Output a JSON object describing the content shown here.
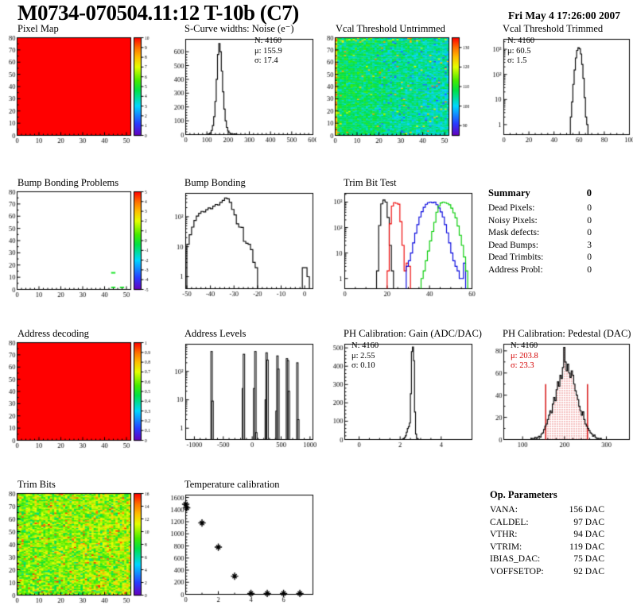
{
  "header": {
    "title": "M0734-070504.11:12 T-10b (C7)",
    "date": "Fri May  4 17:26:00 2007"
  },
  "summary": {
    "heading": "Summary",
    "heading_value": "0",
    "rows": [
      [
        "Dead Pixels:",
        "0"
      ],
      [
        "Noisy Pixels:",
        "0"
      ],
      [
        "Mask defects:",
        "0"
      ],
      [
        "Dead Bumps:",
        "3"
      ],
      [
        "Dead Trimbits:",
        "0"
      ],
      [
        "Address Probl:",
        "0"
      ]
    ]
  },
  "op_parameters": {
    "heading": "Op. Parameters",
    "rows": [
      [
        "VANA:",
        "156 DAC"
      ],
      [
        "CALDEL:",
        "97 DAC"
      ],
      [
        "VTHR:",
        "94 DAC"
      ],
      [
        "VTRIM:",
        "119 DAC"
      ],
      [
        "IBIAS_DAC:",
        "75 DAC"
      ],
      [
        "VOFFSETOP:",
        "92 DAC"
      ]
    ]
  },
  "colors": {
    "red": "#ee0000",
    "green": "#00cc00",
    "blue": "#0000dd",
    "black": "#000000",
    "overlay_red": "#d40000"
  },
  "chart_data": [
    {
      "id": "pixel-map",
      "type": "heatmap",
      "title": "Pixel Map",
      "row": 0,
      "col": 0,
      "x_range": [
        0,
        52
      ],
      "x_ticks": [
        0,
        10,
        20,
        30,
        40,
        50
      ],
      "x_minor": 5,
      "y_range": [
        0,
        80
      ],
      "y_ticks": [
        0,
        10,
        20,
        30,
        40,
        50,
        60,
        70,
        80
      ],
      "y_minor": 2,
      "z_range": [
        0,
        10
      ],
      "z_ticks": [
        "0",
        "1",
        "2",
        "3",
        "4",
        "5",
        "6",
        "7",
        "8",
        "9",
        "10"
      ],
      "heat": {
        "mode": "uniform",
        "value": 10
      }
    },
    {
      "id": "scurve-noise",
      "type": "hist",
      "title": "S-Curve widths: Noise (e⁻)",
      "row": 0,
      "col": 1,
      "x_range": [
        0,
        600
      ],
      "x_ticks": [
        0,
        100,
        200,
        300,
        400,
        500,
        600
      ],
      "x_minor": 5,
      "y_range": [
        0,
        690
      ],
      "y_ticks": [
        0,
        100,
        200,
        300,
        400,
        500,
        600
      ],
      "y_minor": 5,
      "stats": {
        "x": 114,
        "lines": [
          {
            "t": "N: 4160",
            "c": "#000"
          },
          {
            "t": "μ: 155.9",
            "c": "#000"
          },
          {
            "t": "σ: 17.4",
            "c": "#000"
          }
        ]
      },
      "hist": {
        "start": 96,
        "binWidth": 6,
        "color": "#000000",
        "counts": [
          1,
          2,
          5,
          12,
          30,
          65,
          130,
          240,
          400,
          580,
          660,
          600,
          460,
          310,
          185,
          100,
          52,
          26,
          13,
          7,
          3,
          2,
          5,
          2,
          1
        ]
      }
    },
    {
      "id": "vcal-untrimmed",
      "type": "heatmap",
      "title": "Vcal Threshold Untrimmed",
      "row": 0,
      "col": 2,
      "x_range": [
        0,
        52
      ],
      "x_ticks": [
        0,
        10,
        20,
        30,
        40,
        50
      ],
      "x_minor": 5,
      "y_range": [
        0,
        80
      ],
      "y_ticks": [
        0,
        10,
        20,
        30,
        40,
        50,
        60,
        70,
        80
      ],
      "y_minor": 2,
      "z_range": [
        85,
        135
      ],
      "z_ticks": [
        "90",
        "100",
        "110",
        "120",
        "130"
      ],
      "heat": {
        "mode": "noise",
        "seed": 11,
        "base": 107.5,
        "spread": 7,
        "grad": -4,
        "left_col": [
          112,
          133
        ],
        "hot_p": 0.018,
        "hot": [
          118,
          130
        ],
        "cold_p": 0.055,
        "cold": [
          92,
          99
        ],
        "cold_xmin": 18,
        "top_hot": [
          113,
          126
        ]
      }
    },
    {
      "id": "vcal-trimmed",
      "type": "hist",
      "title": "Vcal Threshold Trimmed",
      "row": 0,
      "col": 3,
      "x_range": [
        0,
        100
      ],
      "x_ticks": [
        0,
        20,
        40,
        60,
        80,
        100
      ],
      "x_minor": 4,
      "y_log": true,
      "y_min": 0.4,
      "y_max": 2500,
      "stats": {
        "x": 32,
        "lines": [
          {
            "t": "N: 4160",
            "c": "#000"
          },
          {
            "t": "μ: 60.5",
            "c": "#000"
          },
          {
            "t": "σ:  1.5",
            "c": "#000"
          }
        ]
      },
      "hist": {
        "start": 53,
        "binWidth": 1,
        "color": "#000000",
        "counts": [
          2,
          8,
          40,
          150,
          450,
          900,
          1150,
          1050,
          650,
          250,
          70,
          12,
          2,
          1
        ]
      }
    },
    {
      "id": "bump-problems",
      "type": "heatmap",
      "title": "Bump Bonding Problems",
      "row": 1,
      "col": 0,
      "x_range": [
        0,
        52
      ],
      "x_ticks": [
        0,
        10,
        20,
        30,
        40,
        50
      ],
      "x_minor": 5,
      "y_range": [
        0,
        80
      ],
      "y_ticks": [
        0,
        10,
        20,
        30,
        40,
        50,
        60,
        70,
        80
      ],
      "y_minor": 2,
      "z_range": [
        -5,
        5
      ],
      "z_ticks": [
        "-5",
        "-4",
        "-3",
        "-2",
        "-1",
        "0",
        "1",
        "2",
        "3",
        "4",
        "5"
      ],
      "heat": {
        "mode": "cells",
        "cell_value": 0,
        "cells": [
          [
            43,
            13
          ],
          [
            43,
            1
          ],
          [
            47,
            1
          ]
        ]
      }
    },
    {
      "id": "bump-bonding",
      "type": "hist",
      "title": "Bump Bonding",
      "row": 1,
      "col": 1,
      "x_range": [
        -50.5,
        3.5
      ],
      "x_ticks": [
        -50,
        -40,
        -30,
        -20,
        -10,
        0
      ],
      "x_minor": 5,
      "y_log": true,
      "y_min": 0.4,
      "y_max": 600,
      "hist": {
        "start": -50,
        "binWidth": 1,
        "color": "#000000",
        "counts": [
          12,
          25,
          45,
          75,
          105,
          130,
          150,
          145,
          170,
          195,
          185,
          225,
          255,
          245,
          300,
          350,
          420,
          395,
          300,
          175,
          115,
          58,
          45,
          44,
          15,
          13,
          12,
          8,
          3,
          2,
          0,
          0,
          0,
          0,
          0,
          0,
          0,
          0,
          0,
          0,
          0,
          0,
          0,
          0,
          0,
          0,
          0,
          0,
          0,
          2,
          2,
          1
        ]
      }
    },
    {
      "id": "trim-bit-test",
      "type": "multihist",
      "title": "Trim Bit Test",
      "row": 1,
      "col": 2,
      "x_range": [
        0,
        60
      ],
      "x_ticks": [
        0,
        20,
        40,
        60
      ],
      "x_minor": 4,
      "y_log": true,
      "y_min": 0.4,
      "y_max": 2200,
      "series": [
        {
          "name": "trim-bits-14",
          "color": "#000000",
          "start": 15,
          "binWidth": 1,
          "counts": [
            2,
            120,
            850,
            1200,
            1000,
            250,
            20,
            2
          ]
        },
        {
          "name": "trim-bits-13",
          "color": "#ee0000",
          "start": 20,
          "binWidth": 1,
          "counts": [
            2,
            140,
            700,
            950,
            900,
            830,
            170,
            20,
            2,
            4,
            3
          ]
        },
        {
          "name": "trim-bits-11",
          "color": "#0000dd",
          "start": 29,
          "binWidth": 1,
          "counts": [
            3,
            5,
            10,
            25,
            60,
            130,
            260,
            420,
            620,
            820,
            950,
            1000,
            940,
            990,
            790,
            590,
            410,
            260,
            130,
            62,
            25,
            10,
            5,
            3,
            2,
            1,
            1,
            4
          ]
        },
        {
          "name": "trim-bits-7",
          "color": "#00cc00",
          "start": 36,
          "binWidth": 1,
          "counts": [
            1,
            2,
            5,
            12,
            30,
            70,
            160,
            400,
            700,
            920,
            1000,
            950,
            880,
            780,
            580,
            380,
            240,
            115,
            50,
            20,
            7,
            2
          ]
        }
      ]
    },
    {
      "id": "address-decoding",
      "type": "heatmap",
      "title": "Address decoding",
      "row": 2,
      "col": 0,
      "x_range": [
        0,
        52
      ],
      "x_ticks": [
        0,
        10,
        20,
        30,
        40,
        50
      ],
      "x_minor": 5,
      "y_range": [
        0,
        80
      ],
      "y_ticks": [
        0,
        10,
        20,
        30,
        40,
        50,
        60,
        70,
        80
      ],
      "y_minor": 2,
      "z_range": [
        0,
        1
      ],
      "z_ticks": [
        "0",
        "0.1",
        "0.2",
        "0.3",
        "0.4",
        "0.5",
        "0.6",
        "0.7",
        "0.8",
        "0.9",
        "1"
      ],
      "heat": {
        "mode": "uniform",
        "value": 1
      }
    },
    {
      "id": "address-levels",
      "type": "bars",
      "title": "Address Levels",
      "row": 2,
      "col": 1,
      "x_range": [
        -1150,
        1050
      ],
      "x_ticks": [
        -1000,
        -500,
        0,
        500,
        1000
      ],
      "x_minor": 5,
      "y_log": true,
      "y_min": 0.4,
      "y_max": 900,
      "barWidth": 26,
      "bars": [
        [
          -715,
          500
        ],
        [
          -698,
          9
        ],
        [
          -172,
          25
        ],
        [
          -156,
          400
        ],
        [
          22,
          25
        ],
        [
          42,
          500
        ],
        [
          58,
          0.7
        ],
        [
          222,
          10
        ],
        [
          236,
          450
        ],
        [
          252,
          250
        ],
        [
          408,
          4
        ],
        [
          424,
          350
        ],
        [
          440,
          120
        ],
        [
          588,
          280
        ],
        [
          606,
          240
        ],
        [
          622,
          20
        ],
        [
          768,
          200
        ],
        [
          784,
          2
        ]
      ]
    },
    {
      "id": "ph-gain",
      "type": "hist",
      "title": "PH Calibration: Gain (ADC/DAC)",
      "row": 2,
      "col": 2,
      "x_range": [
        -0.7,
        5.5
      ],
      "x_ticks": [
        0,
        2,
        4
      ],
      "x_minor": 4,
      "y_range": [
        0,
        520
      ],
      "y_ticks": [
        0,
        100,
        200,
        300,
        400,
        500
      ],
      "y_minor": 5,
      "stats": {
        "x": 36,
        "lines": [
          {
            "t": "N: 4160",
            "c": "#000"
          },
          {
            "t": "μ: 2.55",
            "c": "#000"
          },
          {
            "t": "σ: 0.10",
            "c": "#000"
          }
        ]
      },
      "hist": {
        "start": 2.1,
        "binWidth": 0.05,
        "color": "#000000",
        "counts": [
          2,
          5,
          10,
          20,
          40,
          60,
          70,
          90,
          250,
          480,
          505,
          430,
          150,
          30,
          6,
          2
        ]
      }
    },
    {
      "id": "ph-pedestal",
      "type": "hist",
      "title": "PH Calibration: Pedestal (DAC)",
      "row": 2,
      "col": 3,
      "x_range": [
        55,
        355
      ],
      "x_ticks": [
        100,
        200,
        300
      ],
      "x_minor": 5,
      "y_range": [
        0,
        86
      ],
      "y_ticks": [
        0,
        20,
        40,
        60,
        80
      ],
      "y_minor": 2,
      "stats": {
        "x": 36,
        "lines": [
          {
            "t": "N: 4160",
            "c": "#000"
          },
          {
            "t": "μ: 203.8",
            "c": "#d40000"
          },
          {
            "t": "σ: 23.3",
            "c": "#d40000"
          }
        ]
      },
      "overlay": {
        "color": "#d40000",
        "fill_range": [
          155,
          255
        ],
        "lines": [
          {
            "x": 155,
            "y2": 50
          },
          {
            "x": 255,
            "y2": 50
          }
        ]
      },
      "hist": {
        "start": 120,
        "binWidth": 3,
        "color": "#000000",
        "counts": [
          1,
          0,
          1,
          2,
          1,
          2,
          3,
          2,
          5,
          6,
          9,
          12,
          14,
          18,
          22,
          26,
          24,
          32,
          38,
          35,
          45,
          52,
          48,
          58,
          55,
          65,
          83,
          70,
          62,
          68,
          60,
          56,
          62,
          58,
          50,
          44,
          40,
          36,
          30,
          26,
          22,
          25,
          18,
          14,
          12,
          10,
          8,
          6,
          5,
          3,
          4,
          2,
          1,
          1,
          0,
          1
        ]
      }
    },
    {
      "id": "trim-bits-map",
      "type": "heatmap",
      "title": "Trim Bits",
      "row": 3,
      "col": 0,
      "x_range": [
        0,
        52
      ],
      "x_ticks": [
        0,
        10,
        20,
        30,
        40,
        50
      ],
      "x_minor": 5,
      "y_range": [
        0,
        80
      ],
      "y_ticks": [
        0,
        10,
        20,
        30,
        40,
        50,
        60,
        70,
        80
      ],
      "y_minor": 2,
      "z_range": [
        0,
        16
      ],
      "z_ticks": [
        "0",
        "2",
        "4",
        "6",
        "8",
        "10",
        "12",
        "14",
        "16"
      ],
      "heat": {
        "mode": "noise",
        "seed": 5,
        "base": 9.6,
        "spread": 3.2,
        "grad": 0.8,
        "hot_p": 0.05,
        "hot": [
          12.5,
          15.5
        ],
        "cold_p": 0.05,
        "cold": [
          6,
          8
        ],
        "cold_xmin": 0
      }
    },
    {
      "id": "temp-calibration",
      "type": "scatter",
      "title": "Temperature calibration",
      "row": 3,
      "col": 1,
      "x_range": [
        0,
        7.8
      ],
      "x_ticks": [
        0,
        2,
        4,
        6
      ],
      "x_minor": 2,
      "y_range": [
        0,
        1640
      ],
      "y_ticks": [
        0,
        200,
        400,
        600,
        800,
        1000,
        1200,
        1400,
        1600
      ],
      "y_minor": 4,
      "marker": "star",
      "points": [
        [
          0,
          1490
        ],
        [
          0.06,
          1430
        ],
        [
          1,
          1180
        ],
        [
          2,
          780
        ],
        [
          3,
          300
        ],
        [
          4,
          15
        ],
        [
          5,
          15
        ],
        [
          6,
          15
        ],
        [
          7,
          15
        ]
      ]
    }
  ]
}
